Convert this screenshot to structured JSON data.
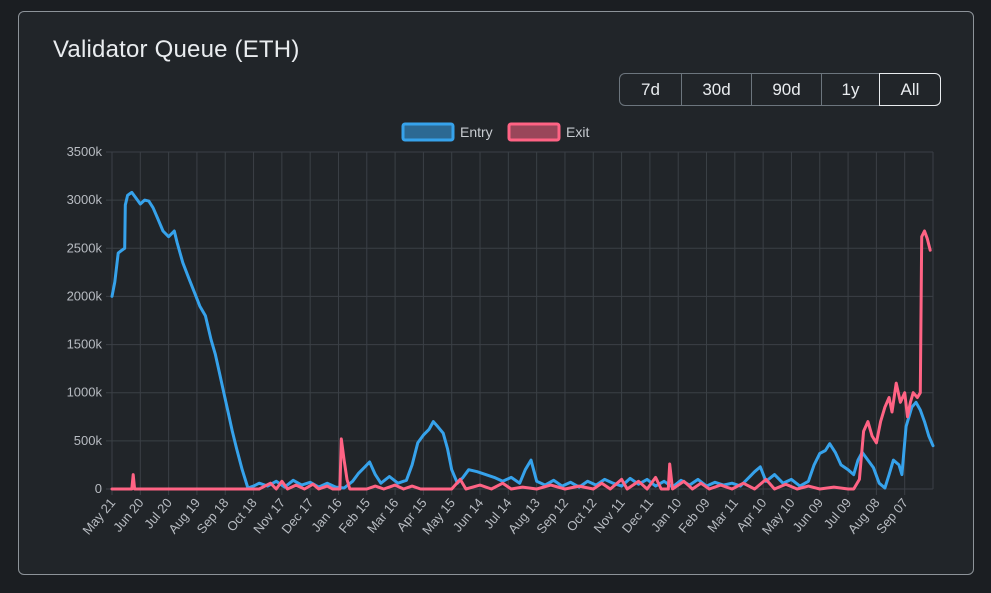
{
  "page": {
    "title": "Validator Queue (ETH)"
  },
  "range_buttons": [
    {
      "label": "7d",
      "active": false
    },
    {
      "label": "30d",
      "active": false
    },
    {
      "label": "90d",
      "active": false
    },
    {
      "label": "1y",
      "active": false
    },
    {
      "label": "All",
      "active": true
    }
  ],
  "chart_data": {
    "type": "line",
    "title": "",
    "xlabel": "",
    "ylabel": "",
    "ylim": [
      0,
      3500
    ],
    "yticks": [
      0,
      500,
      1000,
      1500,
      2000,
      2500,
      3000,
      3500
    ],
    "ytick_labels": [
      "0",
      "500k",
      "1000k",
      "1500k",
      "2000k",
      "2500k",
      "3000k",
      "3500k"
    ],
    "xtick_labels": [
      "May 21",
      "Jun 20",
      "Jul 20",
      "Aug 19",
      "Sep 18",
      "Oct 18",
      "Nov 17",
      "Dec 17",
      "Jan 16",
      "Feb 15",
      "Mar 16",
      "Apr 15",
      "May 15",
      "Jun 14",
      "Jul 14",
      "Aug 13",
      "Sep 12",
      "Oct 12",
      "Nov 11",
      "Dec 11",
      "Jan 10",
      "Feb 09",
      "Mar 11",
      "Apr 10",
      "May 10",
      "Jun 09",
      "Jul 09",
      "Aug 08",
      "Sep 07"
    ],
    "x_span": [
      0,
      29
    ],
    "grid": true,
    "legend_position": "top",
    "series": [
      {
        "name": "Entry",
        "color": "#36a2eb",
        "points": [
          [
            0,
            2000
          ],
          [
            0.1,
            2150
          ],
          [
            0.22,
            2450
          ],
          [
            0.35,
            2480
          ],
          [
            0.45,
            2500
          ],
          [
            0.47,
            2950
          ],
          [
            0.55,
            3050
          ],
          [
            0.7,
            3080
          ],
          [
            0.9,
            3000
          ],
          [
            1.0,
            2960
          ],
          [
            1.15,
            3000
          ],
          [
            1.3,
            2990
          ],
          [
            1.45,
            2920
          ],
          [
            1.6,
            2820
          ],
          [
            1.8,
            2680
          ],
          [
            2.0,
            2620
          ],
          [
            2.2,
            2680
          ],
          [
            2.3,
            2560
          ],
          [
            2.5,
            2350
          ],
          [
            2.7,
            2200
          ],
          [
            2.9,
            2050
          ],
          [
            3.1,
            1900
          ],
          [
            3.3,
            1800
          ],
          [
            3.5,
            1550
          ],
          [
            3.65,
            1400
          ],
          [
            3.8,
            1200
          ],
          [
            3.95,
            1000
          ],
          [
            4.1,
            800
          ],
          [
            4.25,
            600
          ],
          [
            4.4,
            420
          ],
          [
            4.6,
            200
          ],
          [
            4.8,
            10
          ],
          [
            5.0,
            30
          ],
          [
            5.2,
            60
          ],
          [
            5.5,
            30
          ],
          [
            5.8,
            80
          ],
          [
            6.1,
            20
          ],
          [
            6.4,
            90
          ],
          [
            6.7,
            40
          ],
          [
            7.0,
            70
          ],
          [
            7.3,
            20
          ],
          [
            7.6,
            60
          ],
          [
            7.9,
            20
          ],
          [
            8.2,
            10
          ],
          [
            8.5,
            80
          ],
          [
            8.7,
            160
          ],
          [
            8.9,
            220
          ],
          [
            9.1,
            280
          ],
          [
            9.3,
            150
          ],
          [
            9.5,
            60
          ],
          [
            9.8,
            130
          ],
          [
            10.1,
            60
          ],
          [
            10.4,
            90
          ],
          [
            10.6,
            250
          ],
          [
            10.8,
            480
          ],
          [
            11.0,
            560
          ],
          [
            11.2,
            620
          ],
          [
            11.35,
            700
          ],
          [
            11.5,
            650
          ],
          [
            11.7,
            580
          ],
          [
            11.85,
            420
          ],
          [
            12.0,
            200
          ],
          [
            12.2,
            60
          ],
          [
            12.4,
            120
          ],
          [
            12.6,
            200
          ],
          [
            12.9,
            180
          ],
          [
            13.2,
            150
          ],
          [
            13.5,
            120
          ],
          [
            13.8,
            80
          ],
          [
            14.1,
            120
          ],
          [
            14.4,
            60
          ],
          [
            14.6,
            200
          ],
          [
            14.8,
            300
          ],
          [
            15.0,
            80
          ],
          [
            15.3,
            40
          ],
          [
            15.6,
            90
          ],
          [
            15.9,
            30
          ],
          [
            16.2,
            70
          ],
          [
            16.5,
            20
          ],
          [
            16.8,
            80
          ],
          [
            17.1,
            40
          ],
          [
            17.4,
            100
          ],
          [
            17.7,
            60
          ],
          [
            18.0,
            30
          ],
          [
            18.3,
            110
          ],
          [
            18.6,
            50
          ],
          [
            18.9,
            100
          ],
          [
            19.2,
            30
          ],
          [
            19.5,
            80
          ],
          [
            19.8,
            20
          ],
          [
            20.1,
            90
          ],
          [
            20.4,
            40
          ],
          [
            20.7,
            100
          ],
          [
            21.0,
            30
          ],
          [
            21.3,
            70
          ],
          [
            21.6,
            40
          ],
          [
            21.9,
            60
          ],
          [
            22.2,
            30
          ],
          [
            22.5,
            120
          ],
          [
            22.7,
            180
          ],
          [
            22.9,
            230
          ],
          [
            23.1,
            80
          ],
          [
            23.4,
            150
          ],
          [
            23.7,
            60
          ],
          [
            24.0,
            100
          ],
          [
            24.3,
            30
          ],
          [
            24.6,
            80
          ],
          [
            24.8,
            250
          ],
          [
            25.0,
            370
          ],
          [
            25.2,
            400
          ],
          [
            25.35,
            470
          ],
          [
            25.55,
            380
          ],
          [
            25.75,
            250
          ],
          [
            26.0,
            200
          ],
          [
            26.2,
            150
          ],
          [
            26.35,
            300
          ],
          [
            26.5,
            380
          ],
          [
            26.7,
            300
          ],
          [
            26.9,
            220
          ],
          [
            27.1,
            60
          ],
          [
            27.3,
            10
          ],
          [
            27.45,
            150
          ],
          [
            27.6,
            300
          ],
          [
            27.8,
            250
          ],
          [
            27.9,
            150
          ],
          [
            28.05,
            650
          ],
          [
            28.25,
            850
          ],
          [
            28.4,
            900
          ],
          [
            28.55,
            820
          ],
          [
            28.7,
            700
          ],
          [
            28.85,
            550
          ],
          [
            29.0,
            450
          ]
        ]
      },
      {
        "name": "Exit",
        "color": "#ff6384",
        "points": [
          [
            0,
            0
          ],
          [
            0.5,
            0
          ],
          [
            0.7,
            0
          ],
          [
            0.75,
            150
          ],
          [
            0.8,
            0
          ],
          [
            1.5,
            0
          ],
          [
            3.0,
            0
          ],
          [
            4.5,
            0
          ],
          [
            5.2,
            0
          ],
          [
            5.6,
            60
          ],
          [
            5.8,
            0
          ],
          [
            6.0,
            80
          ],
          [
            6.2,
            0
          ],
          [
            6.5,
            40
          ],
          [
            6.8,
            0
          ],
          [
            7.1,
            50
          ],
          [
            7.3,
            0
          ],
          [
            7.6,
            30
          ],
          [
            7.8,
            0
          ],
          [
            8.05,
            0
          ],
          [
            8.1,
            520
          ],
          [
            8.2,
            300
          ],
          [
            8.3,
            100
          ],
          [
            8.4,
            0
          ],
          [
            9.0,
            0
          ],
          [
            9.3,
            30
          ],
          [
            9.6,
            0
          ],
          [
            10.0,
            40
          ],
          [
            10.3,
            0
          ],
          [
            10.6,
            30
          ],
          [
            10.9,
            0
          ],
          [
            11.5,
            0
          ],
          [
            12.0,
            0
          ],
          [
            12.3,
            100
          ],
          [
            12.5,
            0
          ],
          [
            13.0,
            40
          ],
          [
            13.4,
            0
          ],
          [
            13.8,
            60
          ],
          [
            14.1,
            0
          ],
          [
            14.5,
            20
          ],
          [
            15.0,
            0
          ],
          [
            15.5,
            40
          ],
          [
            16.0,
            0
          ],
          [
            16.5,
            30
          ],
          [
            17.0,
            0
          ],
          [
            17.3,
            60
          ],
          [
            17.6,
            0
          ],
          [
            18.0,
            100
          ],
          [
            18.2,
            0
          ],
          [
            18.6,
            80
          ],
          [
            18.9,
            0
          ],
          [
            19.2,
            120
          ],
          [
            19.4,
            0
          ],
          [
            19.65,
            0
          ],
          [
            19.7,
            260
          ],
          [
            19.8,
            0
          ],
          [
            20.2,
            80
          ],
          [
            20.5,
            0
          ],
          [
            20.8,
            60
          ],
          [
            21.1,
            0
          ],
          [
            21.5,
            40
          ],
          [
            21.9,
            0
          ],
          [
            22.3,
            60
          ],
          [
            22.7,
            0
          ],
          [
            23.1,
            100
          ],
          [
            23.4,
            0
          ],
          [
            23.8,
            50
          ],
          [
            24.2,
            0
          ],
          [
            24.6,
            30
          ],
          [
            25.0,
            0
          ],
          [
            25.5,
            20
          ],
          [
            26.0,
            0
          ],
          [
            26.2,
            0
          ],
          [
            26.4,
            100
          ],
          [
            26.55,
            600
          ],
          [
            26.7,
            700
          ],
          [
            26.85,
            550
          ],
          [
            27.0,
            480
          ],
          [
            27.15,
            700
          ],
          [
            27.3,
            850
          ],
          [
            27.45,
            950
          ],
          [
            27.55,
            800
          ],
          [
            27.7,
            1100
          ],
          [
            27.85,
            900
          ],
          [
            28.0,
            1000
          ],
          [
            28.1,
            750
          ],
          [
            28.2,
            900
          ],
          [
            28.3,
            1000
          ],
          [
            28.45,
            950
          ],
          [
            28.55,
            1000
          ],
          [
            28.6,
            2620
          ],
          [
            28.7,
            2680
          ],
          [
            28.8,
            2600
          ],
          [
            28.9,
            2480
          ]
        ]
      }
    ]
  }
}
